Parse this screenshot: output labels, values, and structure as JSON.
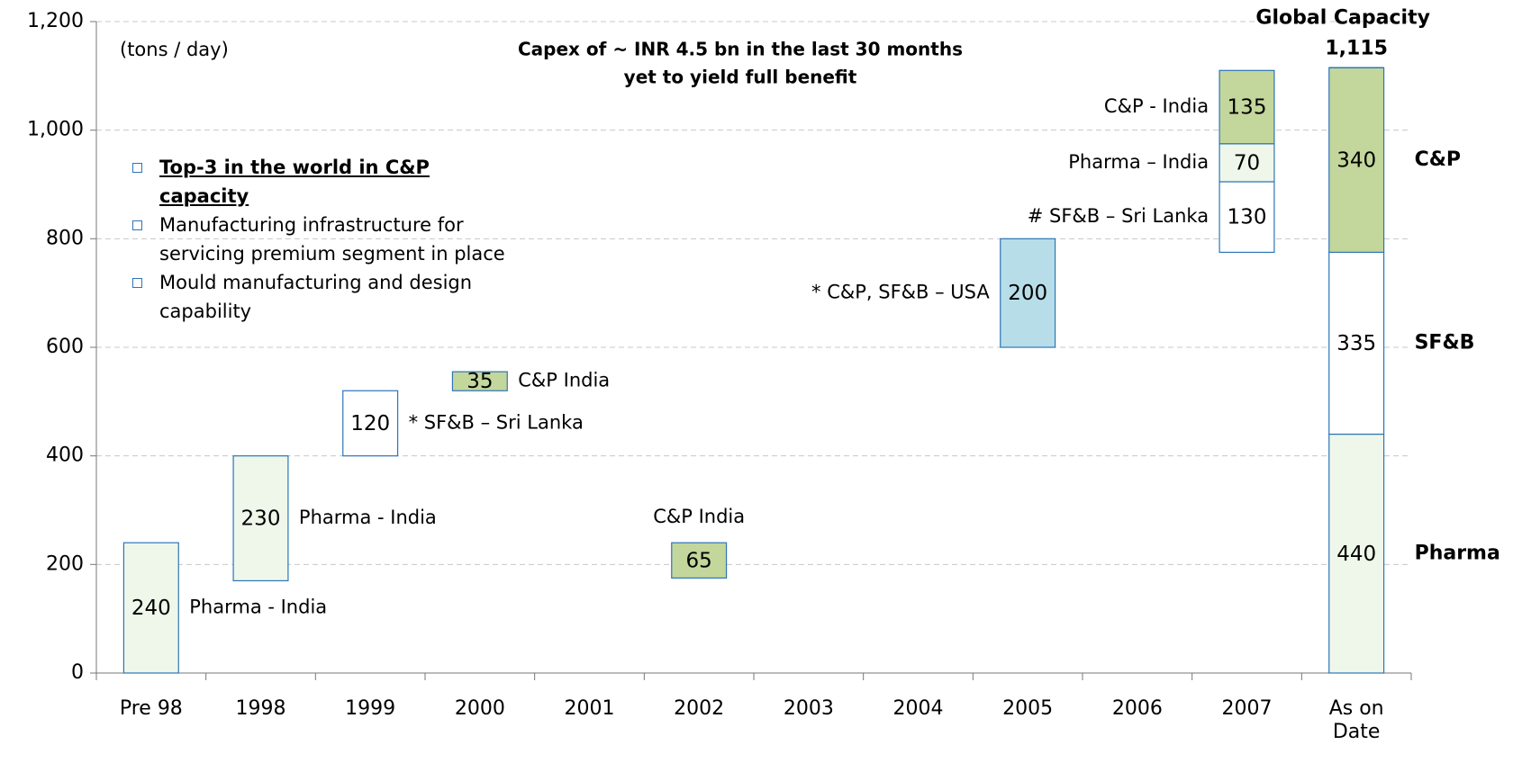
{
  "chart_data": {
    "type": "floating_bar",
    "unit_label": "(tons / day)",
    "title_lines": [
      "Capex of ~ INR 4.5 bn in the last 30 months",
      "yet to yield full benefit"
    ],
    "bullets": [
      "Top-3 in the world in C&P capacity",
      "Manufacturing infrastructure for servicing premium segment in place",
      "Mould manufacturing and design capability"
    ],
    "categories": [
      "Pre 98",
      "1998",
      "1999",
      "2000",
      "2001",
      "2002",
      "2003",
      "2004",
      "2005",
      "2006",
      "2007",
      "As on Date"
    ],
    "ylim": [
      0,
      1200
    ],
    "yticks": [
      0,
      200,
      400,
      600,
      800,
      {
        "value": 1000,
        "label": "1,000"
      },
      {
        "value": 1200,
        "label": "1,200"
      }
    ],
    "grid": true,
    "bars": [
      [
        {
          "start": 0,
          "value": 240,
          "label": "Pharma - India",
          "color": "#eef7ea"
        }
      ],
      [
        {
          "start": 170,
          "value": 230,
          "label": "Pharma - India",
          "color": "#eef7ea"
        }
      ],
      [
        {
          "start": 400,
          "value": 120,
          "label": "* SF&B – Sri Lanka",
          "color": "#ffffff"
        }
      ],
      [
        {
          "start": 520,
          "value": 35,
          "label": "C&P India",
          "color": "#c3d69b"
        }
      ],
      [],
      [
        {
          "start": 175,
          "value": 65,
          "label": "C&P India",
          "color": "#c3d69b"
        }
      ],
      [],
      [],
      [
        {
          "start": 600,
          "value": 200,
          "label": "* C&P, SF&B – USA",
          "color": "#b7dde8"
        }
      ],
      [],
      [
        {
          "start": 775,
          "value": 130,
          "label": "# SF&B – Sri Lanka",
          "color": "#ffffff"
        },
        {
          "start": 905,
          "value": 70,
          "label": "Pharma – India",
          "color": "#eef7ea"
        },
        {
          "start": 975,
          "value": 135,
          "label": "C&P - India",
          "color": "#c3d69b"
        }
      ],
      [
        {
          "start": 0,
          "value": 440,
          "label": "Pharma",
          "color": "#eef7ea"
        },
        {
          "start": 440,
          "value": 335,
          "label": "SF&B",
          "color": "#ffffff"
        },
        {
          "start": 775,
          "value": 340,
          "label": "C&P",
          "color": "#c3d69b"
        }
      ]
    ],
    "total": {
      "label": "Global Capacity",
      "value": 1115,
      "value_label": "1,115"
    }
  }
}
